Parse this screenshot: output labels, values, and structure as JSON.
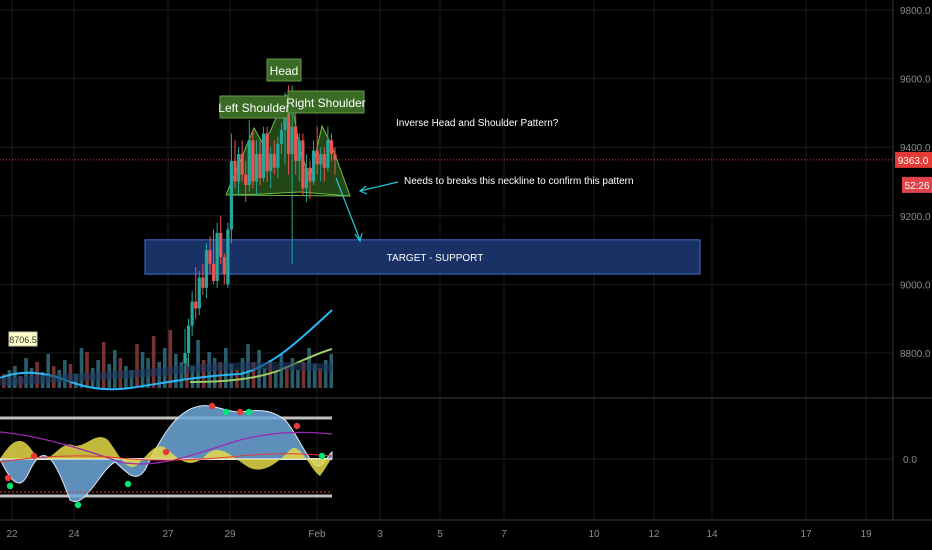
{
  "chart_data": [
    {
      "type": "candlestick",
      "title": "",
      "price_axis": {
        "ticks": [
          "9800.0",
          "9600.0",
          "9400.0",
          "9200.0",
          "9000.0",
          "8800.0"
        ],
        "ylim": [
          8770,
          9830
        ],
        "last_price": "9363.0",
        "countdown": "52:26"
      },
      "time_axis": {
        "ticks": [
          "22",
          "24",
          "27",
          "29",
          "Feb",
          "3",
          "5",
          "7",
          "10",
          "12",
          "14",
          "17",
          "19"
        ]
      },
      "candles": [
        {
          "o": 8770,
          "h": 8870,
          "l": 8720,
          "c": 8800
        },
        {
          "o": 8800,
          "h": 8900,
          "l": 8760,
          "c": 8880
        },
        {
          "o": 8880,
          "h": 8980,
          "l": 8850,
          "c": 8950
        },
        {
          "o": 8950,
          "h": 9050,
          "l": 8900,
          "c": 8930
        },
        {
          "o": 8930,
          "h": 9040,
          "l": 8910,
          "c": 9020
        },
        {
          "o": 9020,
          "h": 9060,
          "l": 8970,
          "c": 8990
        },
        {
          "o": 8990,
          "h": 9120,
          "l": 8960,
          "c": 9100
        },
        {
          "o": 9100,
          "h": 9140,
          "l": 9030,
          "c": 9060
        },
        {
          "o": 9060,
          "h": 9160,
          "l": 9000,
          "c": 9010
        },
        {
          "o": 9010,
          "h": 9180,
          "l": 8990,
          "c": 9150
        },
        {
          "o": 9150,
          "h": 9200,
          "l": 9060,
          "c": 9080
        },
        {
          "o": 9080,
          "h": 9090,
          "l": 9000,
          "c": 9030
        },
        {
          "o": 9000,
          "h": 9180,
          "l": 8990,
          "c": 9160
        },
        {
          "o": 9160,
          "h": 9440,
          "l": 9120,
          "c": 9360
        },
        {
          "o": 9360,
          "h": 9420,
          "l": 9280,
          "c": 9300
        },
        {
          "o": 9300,
          "h": 9400,
          "l": 9260,
          "c": 9380
        },
        {
          "o": 9380,
          "h": 9420,
          "l": 9300,
          "c": 9320
        },
        {
          "o": 9320,
          "h": 9360,
          "l": 9240,
          "c": 9290
        },
        {
          "o": 9290,
          "h": 9480,
          "l": 9270,
          "c": 9420
        },
        {
          "o": 9420,
          "h": 9450,
          "l": 9280,
          "c": 9300
        },
        {
          "o": 9300,
          "h": 9420,
          "l": 9260,
          "c": 9380
        },
        {
          "o": 9380,
          "h": 9420,
          "l": 9290,
          "c": 9310
        },
        {
          "o": 9310,
          "h": 9460,
          "l": 9300,
          "c": 9440
        },
        {
          "o": 9440,
          "h": 9460,
          "l": 9300,
          "c": 9330
        },
        {
          "o": 9330,
          "h": 9400,
          "l": 9280,
          "c": 9380
        },
        {
          "o": 9380,
          "h": 9420,
          "l": 9320,
          "c": 9340
        },
        {
          "o": 9340,
          "h": 9430,
          "l": 9310,
          "c": 9410
        },
        {
          "o": 9410,
          "h": 9470,
          "l": 9380,
          "c": 9450
        },
        {
          "o": 9450,
          "h": 9560,
          "l": 9350,
          "c": 9520
        },
        {
          "o": 9520,
          "h": 9580,
          "l": 9320,
          "c": 9380
        },
        {
          "o": 9380,
          "h": 9580,
          "l": 9060,
          "c": 9460
        },
        {
          "o": 9460,
          "h": 9520,
          "l": 9320,
          "c": 9360
        },
        {
          "o": 9360,
          "h": 9440,
          "l": 9300,
          "c": 9420
        },
        {
          "o": 9420,
          "h": 9440,
          "l": 9260,
          "c": 9280
        },
        {
          "o": 9280,
          "h": 9380,
          "l": 9240,
          "c": 9340
        },
        {
          "o": 9340,
          "h": 9360,
          "l": 9250,
          "c": 9300
        },
        {
          "o": 9300,
          "h": 9420,
          "l": 9290,
          "c": 9390
        },
        {
          "o": 9390,
          "h": 9460,
          "l": 9320,
          "c": 9350
        },
        {
          "o": 9350,
          "h": 9400,
          "l": 9300,
          "c": 9380
        },
        {
          "o": 9380,
          "h": 9400,
          "l": 9300,
          "c": 9340
        },
        {
          "o": 9340,
          "h": 9460,
          "l": 9330,
          "c": 9420
        },
        {
          "o": 9420,
          "h": 9440,
          "l": 9360,
          "c": 9380
        },
        {
          "o": 9380,
          "h": 9400,
          "l": 9320,
          "c": 9363
        }
      ],
      "annotations": {
        "head": "Head",
        "left_shoulder": "Left Shoulder",
        "right_shoulder": "Right Shoulder",
        "pattern_title": "Inverse Head and Shoulder Pattern?",
        "neckline_note": "Needs to breaks this neckline to confirm this pattern",
        "target_zone": "TARGET - SUPPORT",
        "target_zone_range": [
          9030,
          9130
        ],
        "price_tag": "8706.5"
      },
      "colors": {
        "up": "#26a69a",
        "down": "#ef5350",
        "pattern_label_bg": "#3a6b24",
        "pattern_fill": "#2e5d1e",
        "target_box": "#1f3a78",
        "arrow": "#26c6da",
        "last_price_tag": "#e53935"
      }
    },
    {
      "type": "oscillator",
      "zero_label": "0.0",
      "colors": {
        "fast_area": "#6fa8dc",
        "slow_area": "#e6d94a",
        "signal_line": "#9c27b0",
        "level_lines": "#c0c0c0"
      }
    }
  ]
}
